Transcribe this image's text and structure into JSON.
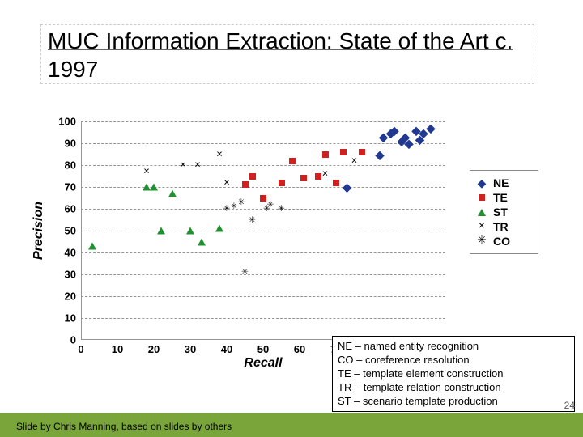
{
  "title": {
    "text": "MUC Information Extraction: State of the Art c. 1997",
    "fontsize": 28,
    "color": "#000000"
  },
  "chart": {
    "type": "scatter",
    "xlabel": "Recall",
    "ylabel": "Precision",
    "xlim": [
      0,
      100
    ],
    "ylim": [
      0,
      100
    ],
    "xtick_step": 10,
    "ytick_step": 10,
    "label_fontsize": 16,
    "tick_fontsize": 13,
    "grid_color": "#969696",
    "background_color": "#ffffff",
    "series": [
      {
        "name": "NE",
        "marker": "diamond",
        "color": "#203890",
        "points": [
          [
            73,
            70
          ],
          [
            82,
            85
          ],
          [
            83,
            93
          ],
          [
            85,
            95
          ],
          [
            86,
            96
          ],
          [
            88,
            91
          ],
          [
            89,
            93
          ],
          [
            90,
            90
          ],
          [
            92,
            96
          ],
          [
            93,
            92
          ],
          [
            94,
            95
          ],
          [
            96,
            97
          ]
        ]
      },
      {
        "name": "TE",
        "marker": "square",
        "color": "#d02020",
        "points": [
          [
            45,
            71
          ],
          [
            47,
            75
          ],
          [
            50,
            65
          ],
          [
            55,
            72
          ],
          [
            58,
            82
          ],
          [
            61,
            74
          ],
          [
            65,
            75
          ],
          [
            67,
            85
          ],
          [
            70,
            72
          ],
          [
            72,
            86
          ],
          [
            77,
            86
          ]
        ]
      },
      {
        "name": "ST",
        "marker": "triangle",
        "color": "#209030",
        "points": [
          [
            3,
            43
          ],
          [
            18,
            70
          ],
          [
            20,
            70
          ],
          [
            22,
            50
          ],
          [
            25,
            67
          ],
          [
            30,
            50
          ],
          [
            33,
            45
          ],
          [
            38,
            51
          ]
        ]
      },
      {
        "name": "TR",
        "marker": "cross",
        "color": "#000000",
        "points": [
          [
            18,
            77
          ],
          [
            28,
            80
          ],
          [
            32,
            80
          ],
          [
            38,
            85
          ],
          [
            40,
            72
          ],
          [
            67,
            76
          ],
          [
            75,
            82
          ]
        ]
      },
      {
        "name": "CO",
        "marker": "asterisk",
        "color": "#000000",
        "points": [
          [
            40,
            60
          ],
          [
            42,
            61
          ],
          [
            44,
            63
          ],
          [
            45,
            31
          ],
          [
            47,
            55
          ],
          [
            51,
            60
          ],
          [
            52,
            62
          ],
          [
            55,
            60
          ]
        ]
      }
    ]
  },
  "legend": {
    "items": [
      {
        "label": "NE",
        "color": "#203890",
        "marker": "diamond"
      },
      {
        "label": "TE",
        "color": "#d02020",
        "marker": "square"
      },
      {
        "label": "ST",
        "color": "#209030",
        "marker": "triangle"
      },
      {
        "label": "TR",
        "color": "#000000",
        "marker": "cross"
      },
      {
        "label": "CO",
        "color": "#000000",
        "marker": "asterisk"
      }
    ],
    "border_color": "#888888",
    "label_fontsize": 14
  },
  "definitions": {
    "lines": [
      "NE – named entity recognition",
      "CO – coreference resolution",
      "TE – template element construction",
      "TR – template relation construction",
      "ST – scenario template production"
    ],
    "fontsize": 13
  },
  "footer": {
    "text": "Slide by Chris Manning, based on slides by others",
    "bar_color": "#79a53b",
    "page_number": "24"
  }
}
